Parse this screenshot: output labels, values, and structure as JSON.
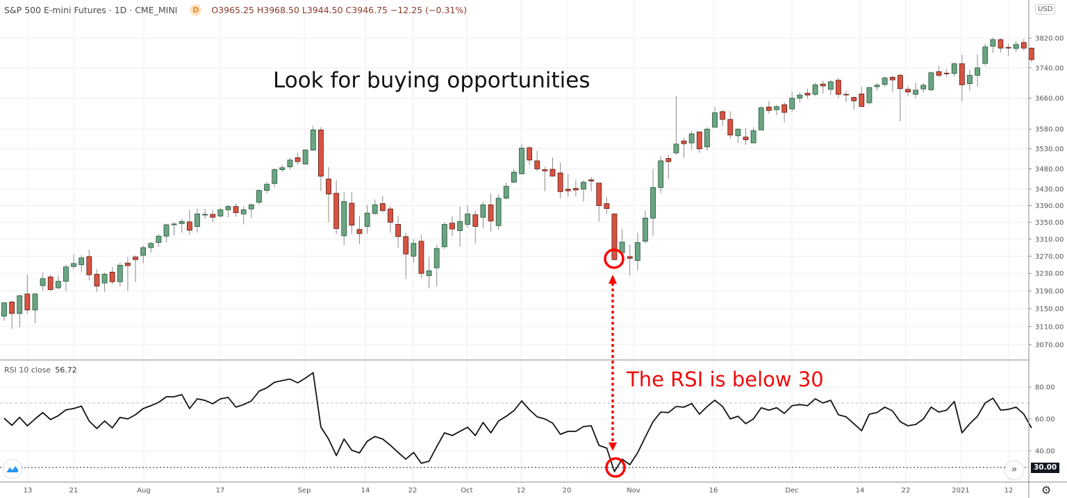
{
  "header": {
    "symbol": "S&P 500 E-mini Futures · 1D · CME_MINI",
    "interval_badge": "D",
    "ohlc": "O3965.25 H3968.50 L3944.50 C3946.75 −12.25 (−0.31%)"
  },
  "currency": "USD",
  "rsi_label": "RSI 10 close",
  "rsi_value": "56.72",
  "level_badge": "30.00",
  "more_button": "»",
  "settings_icon": "⚙",
  "annotations": {
    "top": "Look for buying opportunities",
    "rsi": "The RSI is below 30"
  },
  "colors": {
    "up": "#6ba583",
    "down": "#d75442",
    "rsi_line": "#111111",
    "annotation": "#ff0000"
  },
  "chart_data": [
    {
      "type": "candlestick",
      "scale": "log",
      "grid": true,
      "y_ticks": [
        3820,
        3740,
        3660,
        3580,
        3530,
        3480,
        3430,
        3390,
        3350,
        3310,
        3270,
        3230,
        3190,
        3150,
        3110,
        3070
      ],
      "x_tick_labels": [
        "13",
        "21",
        "Aug",
        "17",
        "Sep",
        "14",
        "22",
        "Oct",
        "12",
        "20",
        "Nov",
        "16",
        "Dec",
        "14",
        "22",
        "2021",
        "12"
      ],
      "ohlc": [
        [
          3133,
          3165,
          3123,
          3163
        ],
        [
          3165,
          3168,
          3105,
          3139
        ],
        [
          3139,
          3182,
          3108,
          3179
        ],
        [
          3183,
          3227,
          3139,
          3147
        ],
        [
          3147,
          3185,
          3117,
          3183
        ],
        [
          3202,
          3232,
          3190,
          3218
        ],
        [
          3222,
          3228,
          3190,
          3193
        ],
        [
          3197,
          3225,
          3194,
          3212
        ],
        [
          3212,
          3250,
          3189,
          3245
        ],
        [
          3246,
          3274,
          3240,
          3253
        ],
        [
          3250,
          3272,
          3234,
          3266
        ],
        [
          3269,
          3285,
          3214,
          3227
        ],
        [
          3228,
          3240,
          3188,
          3201
        ],
        [
          3208,
          3232,
          3188,
          3228
        ],
        [
          3233,
          3245,
          3205,
          3211
        ],
        [
          3211,
          3255,
          3200,
          3249
        ],
        [
          3254,
          3268,
          3190,
          3248
        ],
        [
          3268,
          3272,
          3210,
          3262
        ],
        [
          3272,
          3295,
          3254,
          3290
        ],
        [
          3290,
          3303,
          3278,
          3300
        ],
        [
          3302,
          3322,
          3292,
          3317
        ],
        [
          3317,
          3347,
          3302,
          3344
        ],
        [
          3344,
          3350,
          3318,
          3346
        ],
        [
          3347,
          3358,
          3325,
          3352
        ],
        [
          3351,
          3380,
          3320,
          3331
        ],
        [
          3340,
          3383,
          3325,
          3370
        ],
        [
          3368,
          3382,
          3358,
          3369
        ],
        [
          3369,
          3380,
          3350,
          3362
        ],
        [
          3365,
          3385,
          3362,
          3380
        ],
        [
          3380,
          3392,
          3362,
          3388
        ],
        [
          3388,
          3395,
          3363,
          3373
        ],
        [
          3370,
          3388,
          3345,
          3380
        ],
        [
          3382,
          3395,
          3360,
          3392
        ],
        [
          3398,
          3430,
          3392,
          3427
        ],
        [
          3427,
          3448,
          3420,
          3442
        ],
        [
          3444,
          3482,
          3435,
          3478
        ],
        [
          3478,
          3490,
          3473,
          3483
        ],
        [
          3485,
          3508,
          3478,
          3502
        ],
        [
          3508,
          3520,
          3490,
          3498
        ],
        [
          3492,
          3530,
          3490,
          3527
        ],
        [
          3527,
          3588,
          3525,
          3578
        ],
        [
          3578,
          3585,
          3425,
          3462
        ],
        [
          3455,
          3485,
          3350,
          3418
        ],
        [
          3420,
          3452,
          3322,
          3335
        ],
        [
          3318,
          3423,
          3295,
          3400
        ],
        [
          3396,
          3423,
          3322,
          3343
        ],
        [
          3333,
          3365,
          3298,
          3323
        ],
        [
          3340,
          3392,
          3322,
          3372
        ],
        [
          3371,
          3405,
          3368,
          3392
        ],
        [
          3395,
          3413,
          3373,
          3378
        ],
        [
          3382,
          3388,
          3325,
          3350
        ],
        [
          3345,
          3365,
          3290,
          3316
        ],
        [
          3316,
          3325,
          3217,
          3275
        ],
        [
          3270,
          3310,
          3255,
          3300
        ],
        [
          3305,
          3320,
          3220,
          3230
        ],
        [
          3225,
          3268,
          3196,
          3236
        ],
        [
          3243,
          3296,
          3200,
          3288
        ],
        [
          3292,
          3350,
          3287,
          3345
        ],
        [
          3348,
          3365,
          3317,
          3334
        ],
        [
          3330,
          3388,
          3292,
          3352
        ],
        [
          3345,
          3390,
          3338,
          3370
        ],
        [
          3368,
          3378,
          3300,
          3340
        ],
        [
          3362,
          3400,
          3335,
          3392
        ],
        [
          3392,
          3420,
          3328,
          3353
        ],
        [
          3342,
          3418,
          3332,
          3408
        ],
        [
          3408,
          3447,
          3405,
          3437
        ],
        [
          3447,
          3480,
          3445,
          3472
        ],
        [
          3468,
          3542,
          3465,
          3532
        ],
        [
          3533,
          3536,
          3490,
          3502
        ],
        [
          3500,
          3525,
          3474,
          3480
        ],
        [
          3478,
          3485,
          3425,
          3475
        ],
        [
          3479,
          3508,
          3462,
          3462
        ],
        [
          3470,
          3496,
          3408,
          3424
        ],
        [
          3430,
          3467,
          3412,
          3426
        ],
        [
          3432,
          3452,
          3412,
          3428
        ],
        [
          3430,
          3452,
          3400,
          3447
        ],
        [
          3453,
          3460,
          3425,
          3450
        ],
        [
          3445,
          3445,
          3352,
          3390
        ],
        [
          3395,
          3410,
          3370,
          3383
        ],
        [
          3370,
          3370,
          3260,
          3262
        ],
        [
          3278,
          3334,
          3260,
          3303
        ],
        [
          3269,
          3297,
          3225,
          3265
        ],
        [
          3260,
          3325,
          3237,
          3302
        ],
        [
          3305,
          3378,
          3300,
          3360
        ],
        [
          3360,
          3480,
          3318,
          3434
        ],
        [
          3434,
          3512,
          3420,
          3500
        ],
        [
          3506,
          3515,
          3455,
          3498
        ],
        [
          3520,
          3665,
          3515,
          3542
        ],
        [
          3550,
          3558,
          3508,
          3543
        ],
        [
          3545,
          3575,
          3528,
          3568
        ],
        [
          3573,
          3573,
          3520,
          3530
        ],
        [
          3535,
          3585,
          3525,
          3580
        ],
        [
          3585,
          3638,
          3585,
          3622
        ],
        [
          3625,
          3630,
          3588,
          3605
        ],
        [
          3605,
          3626,
          3555,
          3565
        ],
        [
          3563,
          3583,
          3545,
          3580
        ],
        [
          3560,
          3583,
          3540,
          3553
        ],
        [
          3545,
          3585,
          3545,
          3576
        ],
        [
          3578,
          3640,
          3578,
          3635
        ],
        [
          3637,
          3652,
          3620,
          3628
        ],
        [
          3630,
          3642,
          3616,
          3638
        ],
        [
          3643,
          3650,
          3598,
          3623
        ],
        [
          3632,
          3676,
          3625,
          3660
        ],
        [
          3660,
          3675,
          3648,
          3668
        ],
        [
          3673,
          3685,
          3658,
          3668
        ],
        [
          3670,
          3700,
          3665,
          3695
        ],
        [
          3697,
          3706,
          3672,
          3692
        ],
        [
          3683,
          3708,
          3668,
          3703
        ],
        [
          3707,
          3713,
          3660,
          3670
        ],
        [
          3670,
          3680,
          3650,
          3669
        ],
        [
          3662,
          3665,
          3630,
          3653
        ],
        [
          3671,
          3690,
          3638,
          3638
        ],
        [
          3648,
          3688,
          3643,
          3688
        ],
        [
          3690,
          3700,
          3680,
          3694
        ],
        [
          3696,
          3718,
          3690,
          3713
        ],
        [
          3715,
          3720,
          3675,
          3708
        ],
        [
          3720,
          3725,
          3600,
          3685
        ],
        [
          3683,
          3692,
          3665,
          3676
        ],
        [
          3670,
          3700,
          3660,
          3681
        ],
        [
          3684,
          3700,
          3675,
          3694
        ],
        [
          3682,
          3730,
          3678,
          3727
        ],
        [
          3730,
          3745,
          3715,
          3720
        ],
        [
          3726,
          3737,
          3716,
          3725
        ],
        [
          3725,
          3755,
          3717,
          3751
        ],
        [
          3751,
          3775,
          3652,
          3695
        ],
        [
          3698,
          3735,
          3680,
          3720
        ],
        [
          3720,
          3775,
          3690,
          3740
        ],
        [
          3752,
          3805,
          3745,
          3796
        ],
        [
          3798,
          3822,
          3780,
          3816
        ],
        [
          3816,
          3820,
          3781,
          3793
        ],
        [
          3795,
          3805,
          3772,
          3794
        ],
        [
          3792,
          3812,
          3782,
          3803
        ],
        [
          3808,
          3818,
          3786,
          3793
        ],
        [
          3793,
          3795,
          3755,
          3762
        ]
      ]
    },
    {
      "type": "line",
      "name": "RSI 10 close",
      "ylim": [
        25,
        95
      ],
      "y_ticks": [
        80,
        60,
        40
      ],
      "levels": {
        "upper": 70,
        "lower": 30
      },
      "values": [
        60.4,
        56,
        61,
        55.7,
        60,
        64,
        59.6,
        62,
        65.7,
        66.5,
        68,
        58.7,
        54,
        58.7,
        54.4,
        61,
        60,
        62.6,
        66.5,
        68.3,
        70.4,
        73.9,
        73.9,
        75.2,
        66.5,
        72.6,
        71.6,
        69.5,
        72.6,
        73.5,
        67.4,
        69,
        71.3,
        77.4,
        79.5,
        83,
        84,
        85,
        82.6,
        85.6,
        89,
        55,
        47.4,
        37,
        47.4,
        40.4,
        38.7,
        46,
        49,
        47.4,
        43.5,
        39,
        34.8,
        39,
        32.2,
        33.5,
        42.6,
        51.3,
        49.6,
        52.2,
        54.8,
        49.6,
        57.8,
        51.3,
        58.7,
        61.7,
        65.2,
        71.3,
        65.7,
        61.3,
        60,
        57.4,
        50.4,
        52.2,
        52.2,
        55.2,
        55.7,
        43.5,
        41.7,
        27,
        34.8,
        31.3,
        38.7,
        48.7,
        58.3,
        64.3,
        64,
        67.8,
        67.4,
        69.6,
        63,
        67.8,
        71.7,
        67.8,
        60,
        61.7,
        57,
        60,
        67,
        65.5,
        67,
        63.5,
        68.3,
        69,
        68.3,
        72.6,
        70,
        71.7,
        62.6,
        61.3,
        57,
        52.6,
        63,
        64,
        67.4,
        65,
        58.3,
        55.7,
        56.5,
        60,
        67.4,
        64.3,
        65.5,
        70.9,
        51.3,
        57,
        61.7,
        70,
        73,
        65.5,
        66,
        67.4,
        63,
        54.3
      ]
    }
  ]
}
